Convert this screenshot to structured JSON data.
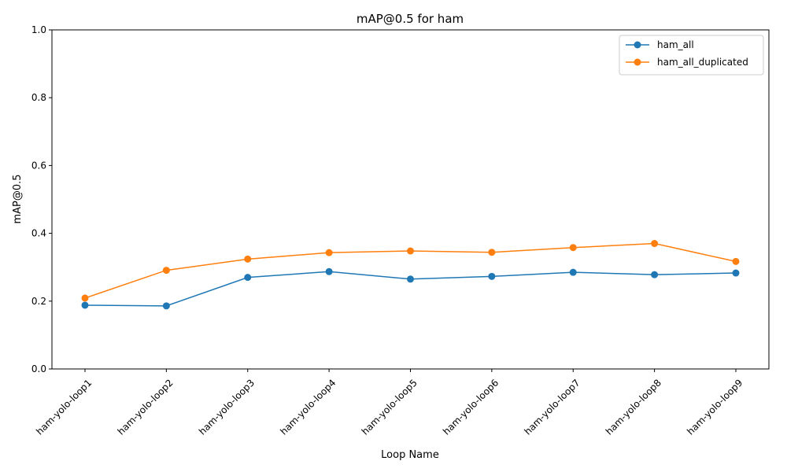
{
  "chart_data": {
    "type": "line",
    "title": "mAP@0.5 for ham",
    "xlabel": "Loop Name",
    "ylabel": "mAP@0.5",
    "categories": [
      "ham-yolo-loop1",
      "ham-yolo-loop2",
      "ham-yolo-loop3",
      "ham-yolo-loop4",
      "ham-yolo-loop5",
      "ham-yolo-loop6",
      "ham-yolo-loop7",
      "ham-yolo-loop8",
      "ham-yolo-loop9"
    ],
    "ylim": [
      0,
      1
    ],
    "yticks": [
      "0.0",
      "0.2",
      "0.4",
      "0.6",
      "0.8",
      "1.0"
    ],
    "grid": false,
    "legend_position": "top-right",
    "series": [
      {
        "name": "ham_all",
        "color": "#1f77b4",
        "marker": "circle",
        "values": [
          0.188,
          0.186,
          0.27,
          0.287,
          0.265,
          0.273,
          0.285,
          0.278,
          0.283
        ]
      },
      {
        "name": "ham_all_duplicated",
        "color": "#ff7f0e",
        "marker": "circle",
        "values": [
          0.209,
          0.291,
          0.324,
          0.343,
          0.348,
          0.344,
          0.358,
          0.37,
          0.317
        ]
      }
    ]
  }
}
